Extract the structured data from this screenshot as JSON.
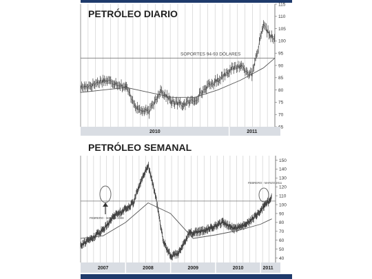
{
  "colors": {
    "navy": "#1e3a6b",
    "bar": "#d9dde3",
    "price": "#3a3a3a",
    "ma": "#555555",
    "grid": "#c8c8c8"
  },
  "chart_data": [
    {
      "type": "line",
      "title": "PETRÓLEO DIARIO",
      "ylim": [
        65,
        115
      ],
      "yticks": [
        65,
        70,
        75,
        80,
        85,
        90,
        95,
        100,
        105,
        110,
        115
      ],
      "year_labels": [
        "2010",
        "2011"
      ],
      "annotation": "SOPORTES 94-93 DÓLARES",
      "support_level": 93,
      "series": [
        {
          "x": [
            "2009-12",
            "2010-01",
            "2010-02",
            "2010-03",
            "2010-04",
            "2010-05",
            "2010-06",
            "2010-07",
            "2010-08",
            "2010-09",
            "2010-10",
            "2010-11",
            "2010-12",
            "2011-01",
            "2011-02",
            "2011-03",
            "2011-04",
            "2011-05"
          ],
          "values": [
            81,
            82,
            84,
            83,
            81,
            72,
            71,
            80,
            75,
            74,
            76,
            81,
            84,
            88,
            90,
            86,
            106,
            100
          ]
        },
        {
          "x": [
            "2009-12",
            "2010-02",
            "2010-04",
            "2010-06",
            "2010-08",
            "2010-10",
            "2010-12",
            "2011-02",
            "2011-04",
            "2011-05"
          ],
          "values": [
            79,
            80,
            81,
            79,
            77,
            77,
            80,
            84,
            89,
            93
          ]
        }
      ]
    },
    {
      "type": "line",
      "title": "PETRÓLEO SEMANAL",
      "ylim": [
        35,
        155
      ],
      "yticks": [
        40,
        50,
        60,
        70,
        80,
        90,
        100,
        110,
        120,
        130,
        140,
        150
      ],
      "year_labels": [
        "2007",
        "2008",
        "2009",
        "2010",
        "2011"
      ],
      "annotations": [
        "FEBRERO - MARZO 2008",
        "FEBRERO - MARZO 2011"
      ],
      "support_level": 104,
      "series": [
        {
          "x": [
            "2007-01",
            "2007-04",
            "2007-07",
            "2007-10",
            "2008-01",
            "2008-03",
            "2008-05",
            "2008-07",
            "2008-09",
            "2008-11",
            "2009-01",
            "2009-03",
            "2009-06",
            "2009-09",
            "2009-12",
            "2010-03",
            "2010-06",
            "2010-09",
            "2010-12",
            "2011-02",
            "2011-04"
          ],
          "values": [
            55,
            62,
            72,
            88,
            95,
            102,
            125,
            145,
            110,
            60,
            42,
            45,
            68,
            70,
            74,
            80,
            73,
            77,
            88,
            98,
            108
          ]
        },
        {
          "x": [
            "2007-01",
            "2007-07",
            "2008-01",
            "2008-07",
            "2009-01",
            "2009-07",
            "2010-01",
            "2010-07",
            "2011-01",
            "2011-04"
          ],
          "values": [
            62,
            65,
            80,
            102,
            90,
            62,
            66,
            71,
            78,
            84
          ]
        }
      ]
    }
  ]
}
